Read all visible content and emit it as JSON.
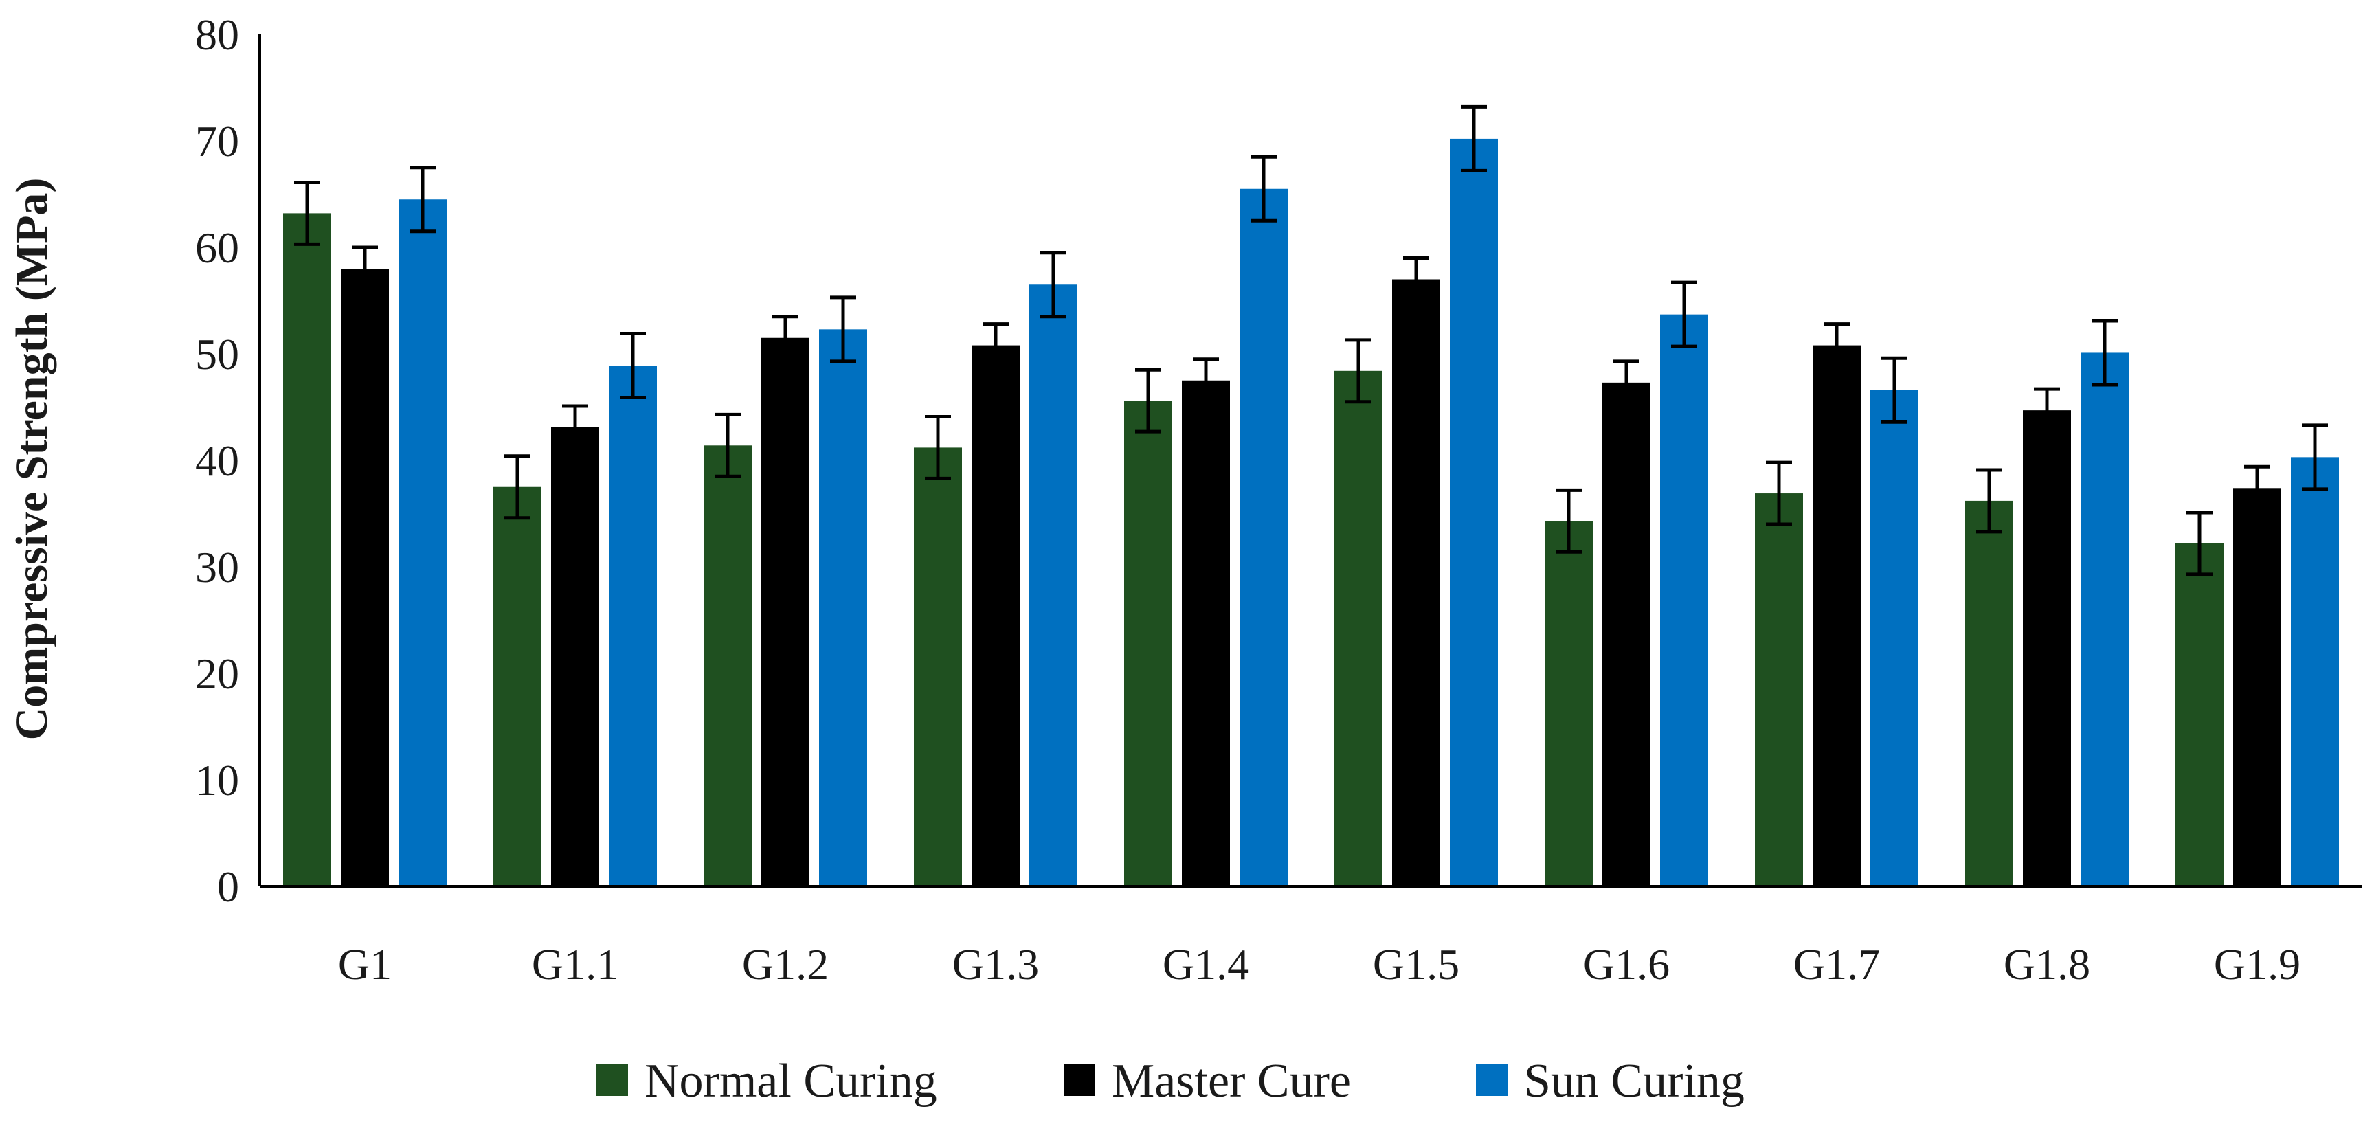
{
  "chart_data": {
    "type": "bar",
    "title": "",
    "xlabel": "",
    "ylabel": "Compressive Strength (MPa)",
    "ylim": [
      0,
      80
    ],
    "yticks": [
      0,
      10,
      20,
      30,
      40,
      50,
      60,
      70,
      80
    ],
    "grid": false,
    "legend_position": "bottom",
    "error_bars": true,
    "categories": [
      "G1",
      "G1.1",
      "G1.2",
      "G1.3",
      "G1.4",
      "G1.5",
      "G1.6",
      "G1.7",
      "G1.8",
      "G1.9"
    ],
    "series": [
      {
        "name": "Normal Curing",
        "color": "#1f5020",
        "values": [
          63.2,
          37.5,
          41.4,
          41.2,
          45.6,
          48.4,
          34.3,
          36.9,
          36.2,
          32.2
        ],
        "errors": [
          2.9,
          2.9,
          2.9,
          2.9,
          2.9,
          2.9,
          2.9,
          2.9,
          2.9,
          2.9
        ]
      },
      {
        "name": "Master Cure",
        "color": "#000000",
        "values": [
          58.0,
          43.1,
          51.5,
          50.8,
          47.5,
          57.0,
          47.3,
          50.8,
          44.7,
          37.4
        ],
        "errors": [
          2.0,
          2.0,
          2.0,
          2.0,
          2.0,
          2.0,
          2.0,
          2.0,
          2.0,
          2.0
        ]
      },
      {
        "name": "Sun Curing",
        "color": "#0070c0",
        "values": [
          64.5,
          48.9,
          52.3,
          56.5,
          65.5,
          70.2,
          53.7,
          46.6,
          50.1,
          40.3
        ],
        "errors": [
          3.0,
          3.0,
          3.0,
          3.0,
          3.0,
          3.0,
          3.0,
          3.0,
          3.0,
          3.0
        ]
      }
    ]
  }
}
